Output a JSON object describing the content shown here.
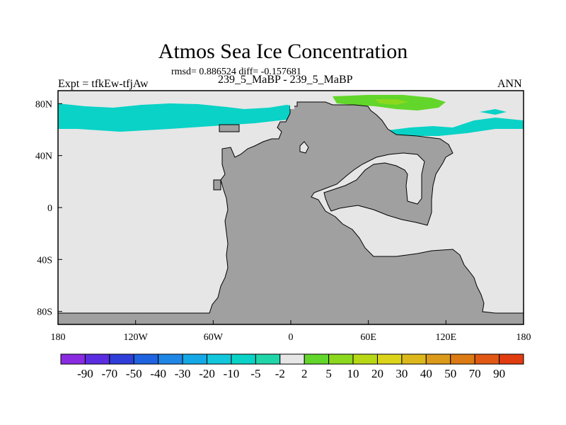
{
  "header": {
    "title": "Atmos Sea Ice Concentration",
    "stats": "rmsd= 0.886524 diff= -0.157681",
    "expt": "Expt = tfkEw-tfjAw",
    "subtitle": "239_5_MaBP - 239_5_MaBP",
    "season": "ANN"
  },
  "map": {
    "projection": "cylindrical-equidistant",
    "lon_range": [
      -180,
      180
    ],
    "lat_range": [
      -90,
      90
    ],
    "x_ticks": [
      "180",
      "120W",
      "60W",
      "0",
      "60E",
      "120E",
      "180"
    ],
    "y_ticks": [
      "80N",
      "40N",
      "0",
      "40S",
      "80S"
    ],
    "colors": {
      "land": "#a0a0a0",
      "ocean_near_zero": "#e6e6e6",
      "coastline": "#000000"
    }
  },
  "colorbar": {
    "labels": [
      "-90",
      "-70",
      "-50",
      "-40",
      "-30",
      "-20",
      "-10",
      "-5",
      "-2",
      "2",
      "5",
      "10",
      "20",
      "30",
      "40",
      "50",
      "70",
      "90"
    ],
    "colors": [
      "#8a2be2",
      "#5a2ee0",
      "#2f3ed8",
      "#1f63e0",
      "#1f86e6",
      "#14a9e6",
      "#12c6dc",
      "#0ad2c6",
      "#20d6a8",
      "#e6e6e6",
      "#62d62a",
      "#8cd81e",
      "#b8d816",
      "#dcd41a",
      "#dcb81c",
      "#dc9a1a",
      "#dc7a14",
      "#e05814",
      "#e03c10"
    ]
  }
}
